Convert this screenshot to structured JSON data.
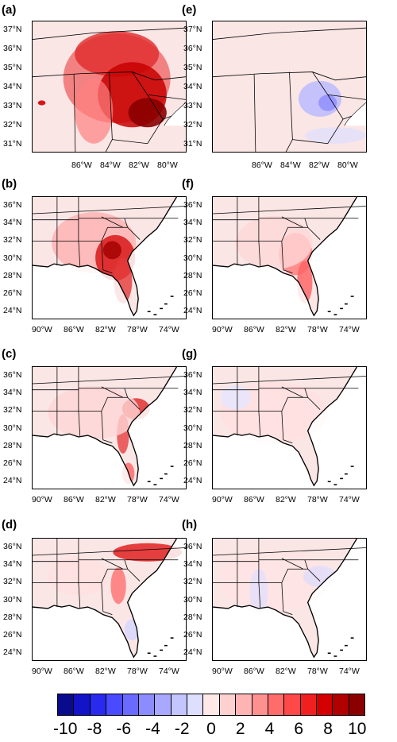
{
  "panels": [
    {
      "id": "a",
      "label": "(a)",
      "col": 0,
      "row": 0,
      "type": "zoom",
      "lats": [
        "37°N",
        "36°N",
        "35°N",
        "34°N",
        "33°N",
        "32°N",
        "31°N"
      ],
      "lons": [
        "86°W",
        "84°W",
        "82°W",
        "80°W"
      ],
      "field": "strong-piedmont"
    },
    {
      "id": "e",
      "label": "(e)",
      "col": 1,
      "row": 0,
      "type": "zoom",
      "lats": [
        "37°N",
        "36°N",
        "35°N",
        "34°N",
        "33°N",
        "32°N",
        "31°N"
      ],
      "lons": [
        "86°W",
        "84°W",
        "82°W",
        "80°W"
      ],
      "field": "weak-blue"
    },
    {
      "id": "b",
      "label": "(b)",
      "col": 0,
      "row": 1,
      "type": "se",
      "lats": [
        "36°N",
        "34°N",
        "32°N",
        "30°N",
        "28°N",
        "26°N",
        "24°N"
      ],
      "lons": [
        "90°W",
        "86°W",
        "82°W",
        "78°W",
        "74°W"
      ],
      "field": "strong-georgia"
    },
    {
      "id": "f",
      "label": "(f)",
      "col": 1,
      "row": 1,
      "type": "se",
      "lats": [
        "36°N",
        "34°N",
        "32°N",
        "30°N",
        "28°N",
        "26°N",
        "24°N"
      ],
      "lons": [
        "90°W",
        "86°W",
        "82°W",
        "78°W",
        "74°W"
      ],
      "field": "medium-georgia"
    },
    {
      "id": "c",
      "label": "(c)",
      "col": 0,
      "row": 2,
      "type": "se",
      "lats": [
        "36°N",
        "34°N",
        "32°N",
        "30°N",
        "28°N",
        "26°N",
        "24°N"
      ],
      "lons": [
        "90°W",
        "86°W",
        "82°W",
        "78°W",
        "74°W"
      ],
      "field": "coastal"
    },
    {
      "id": "g",
      "label": "(g)",
      "col": 1,
      "row": 2,
      "type": "se",
      "lats": [
        "36°N",
        "34°N",
        "32°N",
        "30°N",
        "28°N",
        "26°N",
        "24°N"
      ],
      "lons": [
        "90°W",
        "86°W",
        "82°W",
        "78°W",
        "74°W"
      ],
      "field": "faint"
    },
    {
      "id": "d",
      "label": "(d)",
      "col": 0,
      "row": 3,
      "type": "se",
      "lats": [
        "36°N",
        "34°N",
        "32°N",
        "30°N",
        "28°N",
        "26°N",
        "24°N"
      ],
      "lons": [
        "90°W",
        "86°W",
        "82°W",
        "78°W",
        "74°W"
      ],
      "field": "nc-band"
    },
    {
      "id": "h",
      "label": "(h)",
      "col": 1,
      "row": 3,
      "type": "se",
      "lats": [
        "36°N",
        "34°N",
        "32°N",
        "30°N",
        "28°N",
        "26°N",
        "24°N"
      ],
      "lons": [
        "90°W",
        "86°W",
        "82°W",
        "78°W",
        "74°W"
      ],
      "field": "faint-mixed"
    }
  ],
  "colorbar": {
    "colors": [
      "#0a0a8c",
      "#1313c8",
      "#2a2aee",
      "#4a4aff",
      "#6a6aff",
      "#8c8cff",
      "#a8a8ff",
      "#c4c4ff",
      "#dedeff",
      "#ffe8e8",
      "#ffd0d0",
      "#ffb4b4",
      "#ff9090",
      "#ff6c6c",
      "#ff4848",
      "#f02020",
      "#d40000",
      "#b00000",
      "#8a0000"
    ],
    "labels": [
      "-10",
      "-8",
      "-6",
      "-4",
      "-2",
      "0",
      "2",
      "4",
      "6",
      "8",
      "10"
    ],
    "range": [
      -10,
      10
    ]
  }
}
